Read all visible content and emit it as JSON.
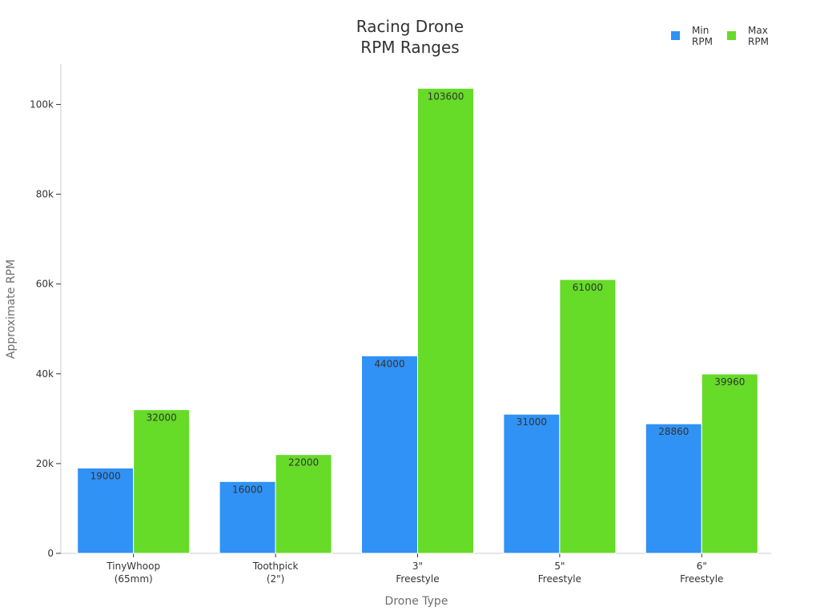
{
  "chart_data": {
    "type": "bar",
    "title": [
      "Racing Drone",
      "RPM Ranges"
    ],
    "xlabel": "Drone Type",
    "ylabel": "Approximate RPM",
    "categories": [
      [
        "TinyWhoop",
        "(65mm)"
      ],
      [
        "Toothpick",
        "(2\")"
      ],
      [
        "3\"",
        "Freestyle"
      ],
      [
        "5\"",
        "Freestyle"
      ],
      [
        "6\"",
        "Freestyle"
      ]
    ],
    "series": [
      {
        "name": [
          "Min",
          "RPM"
        ],
        "color": "#3092F5",
        "values": [
          19000,
          16000,
          44000,
          31000,
          28860
        ]
      },
      {
        "name": [
          "Max",
          "RPM"
        ],
        "color": "#66DB28",
        "values": [
          32000,
          22000,
          103600,
          61000,
          39960
        ]
      }
    ],
    "ylim": [
      0,
      109000
    ],
    "yticks": [
      0,
      20000,
      40000,
      60000,
      80000,
      100000
    ],
    "ytick_labels": [
      "0",
      "20k",
      "40k",
      "60k",
      "80k",
      "100k"
    ],
    "grid": false,
    "legend_position": "top-right",
    "data_labels": true
  }
}
